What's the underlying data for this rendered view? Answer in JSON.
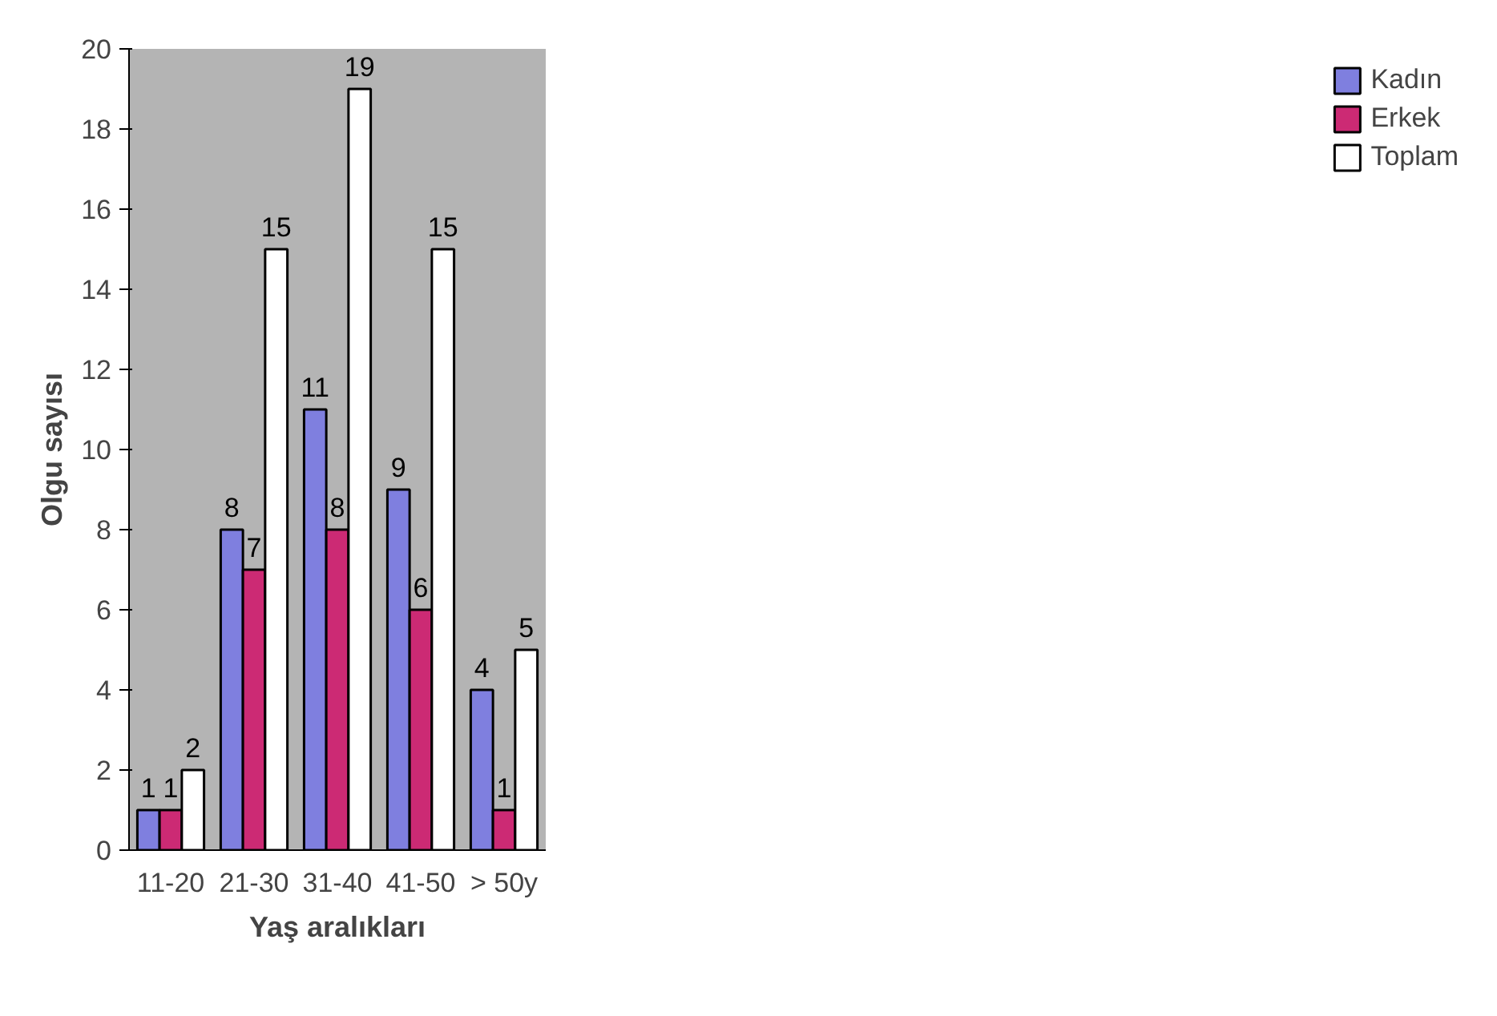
{
  "chart_data": {
    "type": "bar",
    "xlabel": "Yaş aralıkları",
    "ylabel": "Olgu sayısı",
    "categories": [
      "11-20",
      "21-30",
      "31-40",
      "41-50",
      "> 50y"
    ],
    "series": [
      {
        "name": "Kadın",
        "color": "#7f7fdf",
        "values": [
          1,
          8,
          11,
          9,
          4
        ]
      },
      {
        "name": "Erkek",
        "color": "#cc2a74",
        "values": [
          1,
          7,
          8,
          6,
          1
        ]
      },
      {
        "name": "Toplam",
        "color": "#ffffff",
        "values": [
          2,
          15,
          19,
          15,
          5
        ]
      }
    ],
    "ylim": [
      0,
      20
    ],
    "yticks": [
      0,
      2,
      4,
      6,
      8,
      10,
      12,
      14,
      16,
      18,
      20
    ],
    "data_labels": true,
    "legend": "right",
    "grid": false
  }
}
